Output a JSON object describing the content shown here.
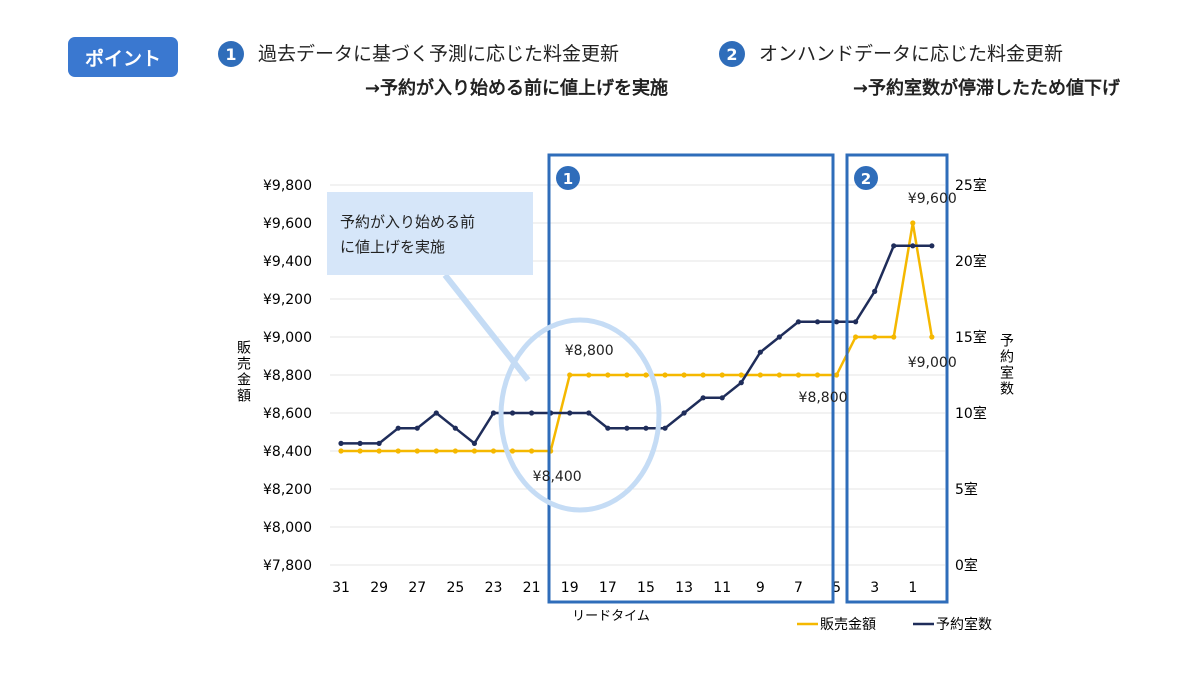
{
  "header": {
    "badge": "ポイント",
    "points": [
      {
        "number": "1",
        "title": "過去データに基づく予測に応じた料金更新",
        "note": "→予約が入り始める前に値上げを実施"
      },
      {
        "number": "2",
        "title": "オンハンドデータに応じた料金更新",
        "note": "→予約室数が停滞したため値下げ"
      }
    ]
  },
  "colors": {
    "price": "#f5b800",
    "rooms": "#1f2d5a",
    "highlight_box": "#2f6dba",
    "callout": "#d6e6f9",
    "badge": "#3a78d0"
  },
  "chart_data": {
    "type": "line",
    "xlabel": "リードタイム",
    "ylabel_left": "販売金額",
    "ylabel_right": "予約室数",
    "x": [
      31,
      30,
      29,
      28,
      27,
      26,
      25,
      24,
      23,
      22,
      21,
      20,
      19,
      18,
      17,
      16,
      15,
      14,
      13,
      12,
      11,
      10,
      9,
      8,
      7,
      6,
      5,
      4,
      3,
      2,
      1,
      0
    ],
    "x_tick_labels": [
      "31",
      "29",
      "27",
      "25",
      "23",
      "21",
      "19",
      "17",
      "15",
      "13",
      "11",
      "9",
      "7",
      "5",
      "3",
      "1"
    ],
    "x_range": [
      31,
      0
    ],
    "y_left_range": [
      7800,
      9800
    ],
    "y_left_ticks": [
      "¥7,800",
      "¥8,000",
      "¥8,200",
      "¥8,400",
      "¥8,600",
      "¥8,800",
      "¥9,000",
      "¥9,200",
      "¥9,400",
      "¥9,600",
      "¥9,800"
    ],
    "y_right_range": [
      0,
      25
    ],
    "y_right_ticks": [
      "0室",
      "5室",
      "10室",
      "15室",
      "20室",
      "25室"
    ],
    "grid": true,
    "legend_placement": "bottom-right",
    "series": [
      {
        "name": "販売金額",
        "axis": "left",
        "values": [
          8400,
          8400,
          8400,
          8400,
          8400,
          8400,
          8400,
          8400,
          8400,
          8400,
          8400,
          8400,
          8800,
          8800,
          8800,
          8800,
          8800,
          8800,
          8800,
          8800,
          8800,
          8800,
          8800,
          8800,
          8800,
          8800,
          8800,
          9000,
          9000,
          9000,
          9600,
          9000
        ]
      },
      {
        "name": "予約室数",
        "axis": "right",
        "values": [
          8,
          8,
          8,
          9,
          9,
          10,
          9,
          8,
          10,
          10,
          10,
          10,
          10,
          10,
          9,
          9,
          9,
          9,
          10,
          11,
          11,
          12,
          14,
          15,
          16,
          16,
          16,
          16,
          18,
          21,
          21,
          21
        ]
      }
    ],
    "annotations": {
      "callout": "予約が入り始める前\nに値上げを実施",
      "callout_line1": "予約が入り始める前",
      "callout_line2": "に値上げを実施",
      "box1_number": "1",
      "box2_number": "2",
      "labels": [
        {
          "text": "¥8,800",
          "x": 19,
          "value": 8800
        },
        {
          "text": "¥8,400",
          "x": 20,
          "value": 8400
        },
        {
          "text": "¥8,800",
          "x": 5,
          "value": 8800
        },
        {
          "text": "¥9,000",
          "x": 2,
          "value": 9000
        },
        {
          "text": "¥9,600",
          "x": 1,
          "value": 9600
        }
      ]
    }
  }
}
